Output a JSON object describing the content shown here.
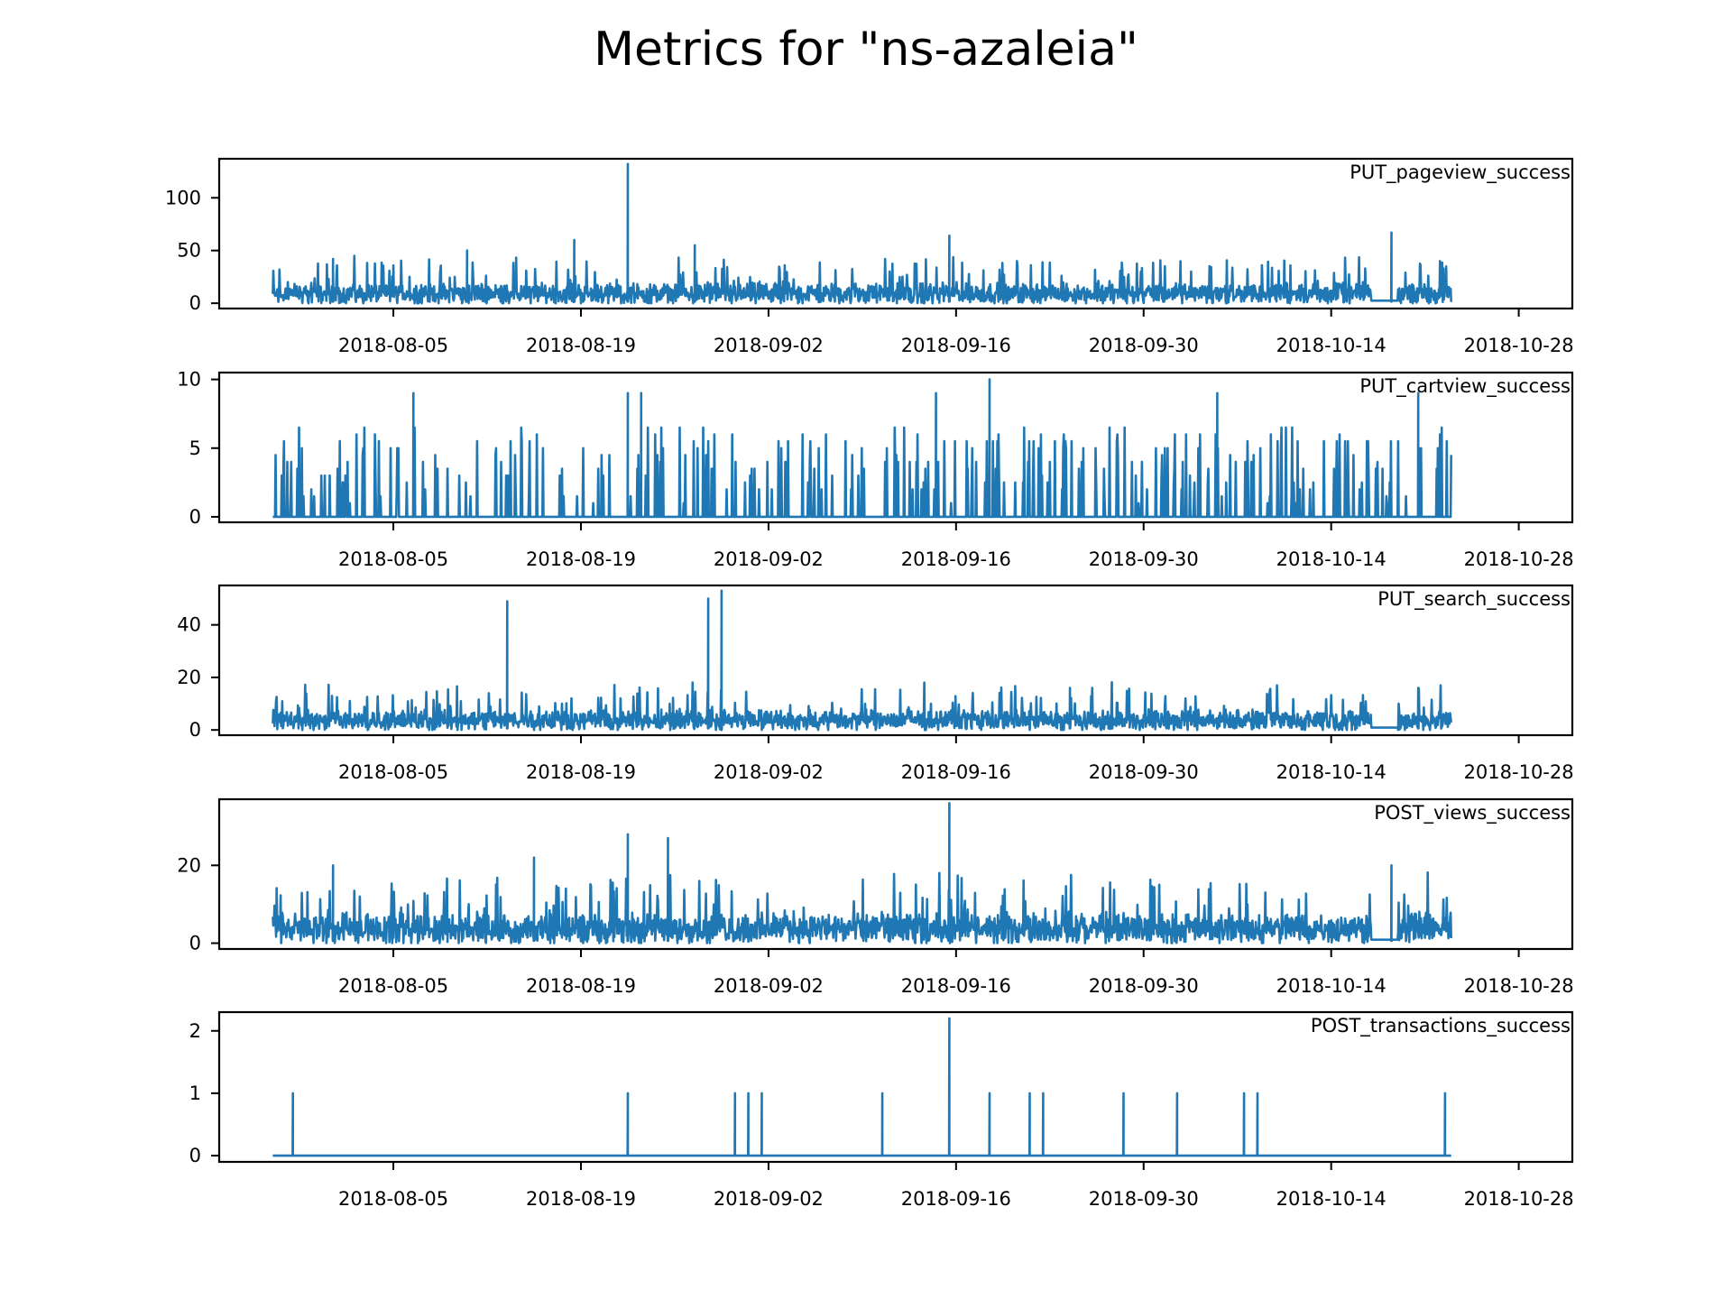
{
  "figure": {
    "title": "Metrics for \"ns-azaleia\""
  },
  "chart_data": [
    {
      "type": "line",
      "series_name": "PUT_pageview_success",
      "x_start": "2018-07-27",
      "x_end": "2018-10-23",
      "xlim": [
        "2018-07-23",
        "2018-11-01"
      ],
      "x_ticks": [
        "2018-08-05",
        "2018-08-19",
        "2018-09-02",
        "2018-09-16",
        "2018-09-30",
        "2018-10-14",
        "2018-10-28"
      ],
      "ylim": [
        -5,
        137
      ],
      "y_ticks": [
        0,
        50,
        100
      ],
      "base": 8,
      "spread": 22,
      "spikes": [
        {
          "x": "2018-08-18",
          "y": 60
        },
        {
          "x": "2018-08-22",
          "y": 132
        },
        {
          "x": "2018-08-27",
          "y": 55
        },
        {
          "x": "2018-09-15",
          "y": 64
        },
        {
          "x": "2018-10-18",
          "y": 67
        },
        {
          "x": "2018-07-31",
          "y": 42
        },
        {
          "x": "2018-08-10",
          "y": 50
        }
      ],
      "gaps": [
        [
          "2018-10-17",
          "2018-10-19"
        ]
      ]
    },
    {
      "type": "line",
      "series_name": "PUT_cartview_success",
      "x_start": "2018-07-27",
      "x_end": "2018-10-23",
      "xlim": [
        "2018-07-23",
        "2018-11-01"
      ],
      "x_ticks": [
        "2018-08-05",
        "2018-08-19",
        "2018-09-02",
        "2018-09-16",
        "2018-09-30",
        "2018-10-14",
        "2018-10-28"
      ],
      "ylim": [
        -0.4,
        10.5
      ],
      "y_ticks": [
        0,
        5,
        10
      ],
      "base": 0,
      "spread": 5.5,
      "spikes": [
        {
          "x": "2018-08-06",
          "y": 9
        },
        {
          "x": "2018-08-22",
          "y": 9
        },
        {
          "x": "2018-08-23",
          "y": 9
        },
        {
          "x": "2018-09-14",
          "y": 9
        },
        {
          "x": "2018-09-18",
          "y": 10
        },
        {
          "x": "2018-10-05",
          "y": 9
        },
        {
          "x": "2018-10-20",
          "y": 9
        }
      ],
      "sparse": true,
      "gaps": []
    },
    {
      "type": "line",
      "series_name": "PUT_search_success",
      "x_start": "2018-07-27",
      "x_end": "2018-10-23",
      "xlim": [
        "2018-07-23",
        "2018-11-01"
      ],
      "x_ticks": [
        "2018-08-05",
        "2018-08-19",
        "2018-09-02",
        "2018-09-16",
        "2018-09-30",
        "2018-10-14",
        "2018-10-28"
      ],
      "ylim": [
        -2,
        55
      ],
      "y_ticks": [
        0,
        20,
        40
      ],
      "base": 3,
      "spread": 9,
      "spikes": [
        {
          "x": "2018-08-13",
          "y": 49
        },
        {
          "x": "2018-08-28",
          "y": 50
        },
        {
          "x": "2018-08-29",
          "y": 53
        },
        {
          "x": "2018-09-24",
          "y": 16
        },
        {
          "x": "2018-10-20",
          "y": 16
        }
      ],
      "gaps": [
        [
          "2018-10-17",
          "2018-10-19"
        ]
      ]
    },
    {
      "type": "line",
      "series_name": "POST_views_success",
      "x_start": "2018-07-27",
      "x_end": "2018-10-23",
      "xlim": [
        "2018-07-23",
        "2018-11-01"
      ],
      "x_ticks": [
        "2018-08-05",
        "2018-08-19",
        "2018-09-02",
        "2018-09-16",
        "2018-09-30",
        "2018-10-14",
        "2018-10-28"
      ],
      "ylim": [
        -1.5,
        37
      ],
      "y_ticks": [
        0,
        20
      ],
      "base": 3,
      "spread": 9,
      "spikes": [
        {
          "x": "2018-08-22",
          "y": 28
        },
        {
          "x": "2018-08-25",
          "y": 27
        },
        {
          "x": "2018-09-15",
          "y": 36
        },
        {
          "x": "2018-08-15",
          "y": 22
        },
        {
          "x": "2018-10-18",
          "y": 20
        },
        {
          "x": "2018-07-31",
          "y": 20
        }
      ],
      "gaps": [
        [
          "2018-10-17",
          "2018-10-19"
        ]
      ]
    },
    {
      "type": "line",
      "series_name": "POST_transactions_success",
      "x_start": "2018-07-27",
      "x_end": "2018-10-23",
      "xlim": [
        "2018-07-23",
        "2018-11-01"
      ],
      "x_ticks": [
        "2018-08-05",
        "2018-08-19",
        "2018-09-02",
        "2018-09-16",
        "2018-09-30",
        "2018-10-14",
        "2018-10-28"
      ],
      "ylim": [
        -0.1,
        2.3
      ],
      "y_ticks": [
        0,
        1,
        2
      ],
      "base": 0,
      "spread": 0,
      "spikes": [
        {
          "x": "2018-07-28",
          "y": 1
        },
        {
          "x": "2018-08-22",
          "y": 1
        },
        {
          "x": "2018-08-30",
          "y": 1
        },
        {
          "x": "2018-08-31",
          "y": 1
        },
        {
          "x": "2018-09-01",
          "y": 1
        },
        {
          "x": "2018-09-10",
          "y": 1
        },
        {
          "x": "2018-09-15",
          "y": 2.2
        },
        {
          "x": "2018-09-18",
          "y": 1
        },
        {
          "x": "2018-09-21",
          "y": 1
        },
        {
          "x": "2018-09-22",
          "y": 1
        },
        {
          "x": "2018-09-28",
          "y": 1
        },
        {
          "x": "2018-10-02",
          "y": 1
        },
        {
          "x": "2018-10-07",
          "y": 1
        },
        {
          "x": "2018-10-08",
          "y": 1
        },
        {
          "x": "2018-10-22",
          "y": 1
        }
      ],
      "gaps": []
    }
  ]
}
